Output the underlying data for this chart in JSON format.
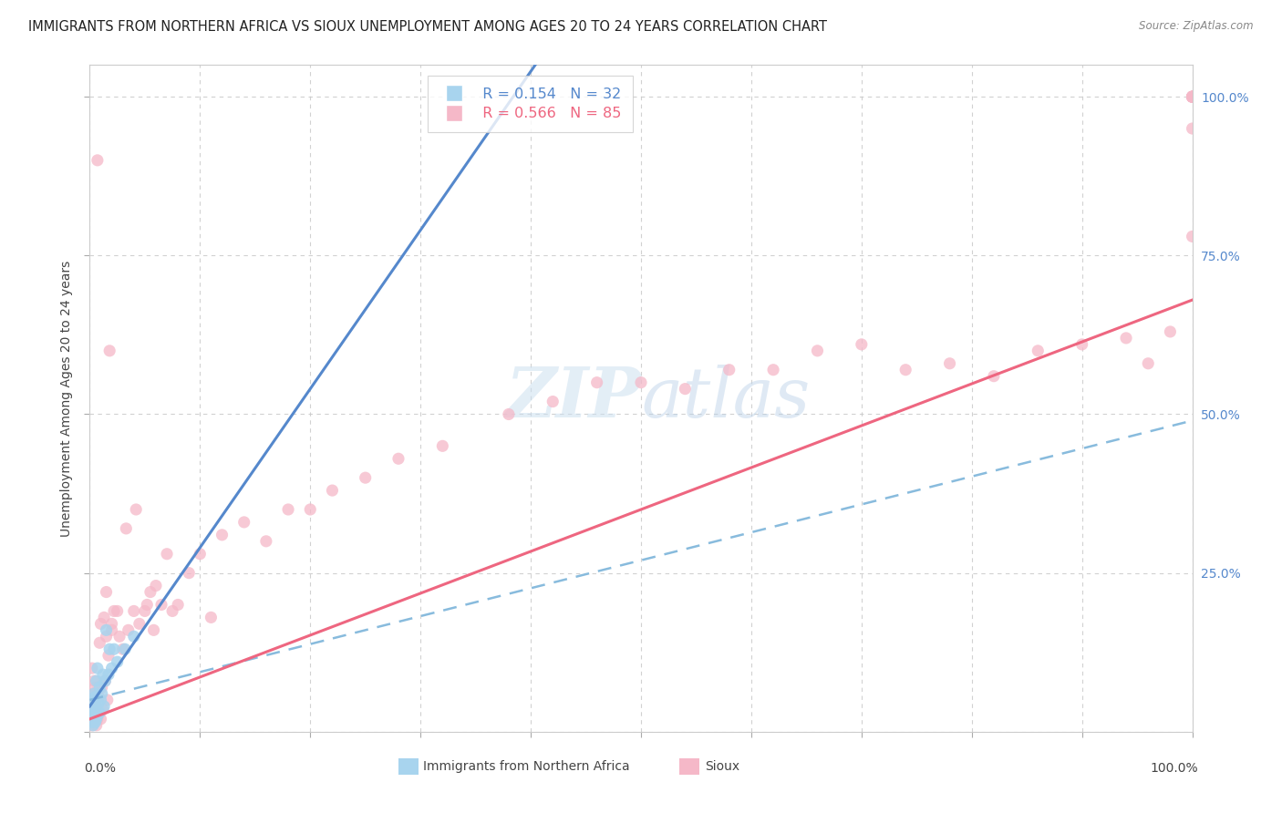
{
  "title": "IMMIGRANTS FROM NORTHERN AFRICA VS SIOUX UNEMPLOYMENT AMONG AGES 20 TO 24 YEARS CORRELATION CHART",
  "source": "Source: ZipAtlas.com",
  "ylabel": "Unemployment Among Ages 20 to 24 years",
  "legend_blue_r": "R = 0.154",
  "legend_blue_n": "N = 32",
  "legend_pink_r": "R = 0.566",
  "legend_pink_n": "N = 85",
  "legend_blue_label": "Immigrants from Northern Africa",
  "legend_pink_label": "Sioux",
  "blue_color": "#a8d4ee",
  "pink_color": "#f5b8c8",
  "blue_line_color": "#5588cc",
  "pink_line_color": "#ee6680",
  "blue_dot_line_color": "#88bbdd",
  "watermark_color": "#ddeeff",
  "background_color": "#ffffff",
  "blue_x": [
    0.001,
    0.002,
    0.002,
    0.003,
    0.003,
    0.003,
    0.004,
    0.004,
    0.004,
    0.005,
    0.005,
    0.005,
    0.006,
    0.006,
    0.007,
    0.007,
    0.008,
    0.009,
    0.009,
    0.01,
    0.011,
    0.012,
    0.013,
    0.014,
    0.015,
    0.017,
    0.018,
    0.02,
    0.022,
    0.025,
    0.032,
    0.04
  ],
  "blue_y": [
    0.02,
    0.015,
    0.03,
    0.01,
    0.025,
    0.05,
    0.02,
    0.04,
    0.06,
    0.015,
    0.035,
    0.055,
    0.02,
    0.08,
    0.025,
    0.1,
    0.045,
    0.03,
    0.07,
    0.05,
    0.06,
    0.09,
    0.04,
    0.08,
    0.16,
    0.09,
    0.13,
    0.1,
    0.13,
    0.11,
    0.13,
    0.15
  ],
  "pink_x": [
    0.001,
    0.001,
    0.002,
    0.002,
    0.003,
    0.003,
    0.004,
    0.004,
    0.005,
    0.005,
    0.006,
    0.006,
    0.007,
    0.007,
    0.008,
    0.009,
    0.01,
    0.01,
    0.011,
    0.012,
    0.013,
    0.014,
    0.015,
    0.015,
    0.016,
    0.017,
    0.018,
    0.02,
    0.02,
    0.022,
    0.025,
    0.027,
    0.03,
    0.033,
    0.035,
    0.04,
    0.042,
    0.045,
    0.05,
    0.052,
    0.055,
    0.058,
    0.06,
    0.065,
    0.07,
    0.075,
    0.08,
    0.09,
    0.1,
    0.11,
    0.12,
    0.14,
    0.16,
    0.18,
    0.2,
    0.22,
    0.25,
    0.28,
    0.32,
    0.38,
    0.42,
    0.46,
    0.5,
    0.54,
    0.58,
    0.62,
    0.66,
    0.7,
    0.74,
    0.78,
    0.82,
    0.86,
    0.9,
    0.94,
    0.96,
    0.98,
    1.0,
    1.0,
    1.0,
    1.0,
    1.0,
    1.0,
    1.0,
    1.0,
    1.0
  ],
  "pink_y": [
    0.02,
    0.05,
    0.01,
    0.1,
    0.03,
    0.06,
    0.02,
    0.08,
    0.03,
    0.07,
    0.01,
    0.04,
    0.9,
    0.02,
    0.055,
    0.14,
    0.17,
    0.02,
    0.07,
    0.035,
    0.18,
    0.08,
    0.22,
    0.15,
    0.05,
    0.12,
    0.6,
    0.17,
    0.16,
    0.19,
    0.19,
    0.15,
    0.13,
    0.32,
    0.16,
    0.19,
    0.35,
    0.17,
    0.19,
    0.2,
    0.22,
    0.16,
    0.23,
    0.2,
    0.28,
    0.19,
    0.2,
    0.25,
    0.28,
    0.18,
    0.31,
    0.33,
    0.3,
    0.35,
    0.35,
    0.38,
    0.4,
    0.43,
    0.45,
    0.5,
    0.52,
    0.55,
    0.55,
    0.54,
    0.57,
    0.57,
    0.6,
    0.61,
    0.57,
    0.58,
    0.56,
    0.6,
    0.61,
    0.62,
    0.58,
    0.63,
    1.0,
    1.0,
    1.0,
    1.0,
    1.0,
    1.0,
    0.95,
    1.0,
    0.78
  ],
  "xlim": [
    0,
    1.0
  ],
  "ylim": [
    0,
    1.05
  ],
  "yticks": [
    0.0,
    0.25,
    0.5,
    0.75,
    1.0
  ],
  "ytick_labels_right": [
    "25.0%",
    "50.0%",
    "75.0%",
    "100.0%"
  ],
  "xticks": [
    0.0,
    0.1,
    0.2,
    0.3,
    0.4,
    0.5,
    0.6,
    0.7,
    0.8,
    0.9,
    1.0
  ],
  "pink_line_slope": 0.66,
  "pink_line_intercept": 0.02,
  "blue_line_slope": 2.5,
  "blue_line_intercept": 0.04,
  "blue_dash_slope": 0.44,
  "blue_dash_intercept": 0.05
}
